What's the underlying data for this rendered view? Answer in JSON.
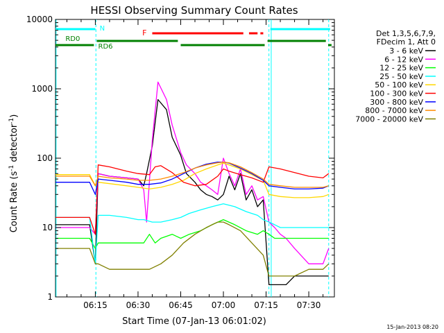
{
  "chart_data": {
    "type": "line",
    "title": "HESSI Observing Summary Count Rates",
    "xlabel": "Start Time (07-Jan-13 06:01:02)",
    "ylabel_main": "Count Rate (s",
    "ylabel_sup1": "-1",
    "ylabel_mid": " detector",
    "ylabel_sup2": "-1",
    "ylabel_end": ")",
    "y_scale": "log",
    "ylim": [
      1,
      10000
    ],
    "xlim_minutes": [
      361,
      459
    ],
    "grid": false,
    "x_ticks": [
      {
        "label": "06:15",
        "minute": 375
      },
      {
        "label": "06:30",
        "minute": 390
      },
      {
        "label": "06:45",
        "minute": 405
      },
      {
        "label": "07:00",
        "minute": 420
      },
      {
        "label": "07:15",
        "minute": 435
      },
      {
        "label": "07:30",
        "minute": 450
      }
    ],
    "y_ticks": [
      {
        "label": "1",
        "value": 1
      },
      {
        "label": "10",
        "value": 10
      },
      {
        "label": "100",
        "value": 100
      },
      {
        "label": "1000",
        "value": 1000
      },
      {
        "label": "10000",
        "value": 10000
      }
    ],
    "legend_position": "right",
    "legend_header": [
      "Det 1,3,5,6,7,9,",
      "FDecim 1, Att 0"
    ],
    "series": [
      {
        "name": "3 - 6 keV",
        "color": "#000000",
        "x": [
          361,
          373,
          375,
          376,
          380,
          386,
          390,
          392,
          393,
          395,
          397,
          400,
          402,
          405,
          407,
          410,
          412,
          414,
          416,
          418,
          420,
          422,
          424,
          426,
          428,
          430,
          432,
          434,
          436,
          438,
          440,
          442,
          445,
          450,
          455,
          457
        ],
        "y": [
          11,
          11,
          3,
          60,
          55,
          52,
          50,
          40,
          60,
          150,
          700,
          500,
          200,
          110,
          60,
          45,
          35,
          30,
          28,
          25,
          30,
          55,
          35,
          60,
          25,
          35,
          20,
          25,
          1.5,
          1.5,
          1.5,
          1.5,
          2,
          2,
          2,
          2
        ]
      },
      {
        "name": "6 - 12 keV",
        "color": "#ff00ff",
        "x": [
          361,
          373,
          375,
          376,
          380,
          386,
          390,
          392,
          393,
          395,
          397,
          400,
          402,
          405,
          407,
          410,
          412,
          414,
          416,
          418,
          420,
          422,
          424,
          426,
          428,
          430,
          432,
          434,
          436,
          438,
          440,
          442,
          445,
          450,
          455,
          457
        ],
        "y": [
          10,
          10,
          8,
          60,
          55,
          52,
          50,
          35,
          12,
          180,
          1250,
          700,
          300,
          120,
          80,
          60,
          45,
          40,
          35,
          30,
          100,
          60,
          40,
          70,
          30,
          40,
          25,
          28,
          12,
          10,
          8,
          7,
          5,
          3,
          3,
          5
        ]
      },
      {
        "name": "12 - 25 keV",
        "color": "#00ff00",
        "x": [
          361,
          373,
          375,
          376,
          380,
          386,
          390,
          392,
          394,
          396,
          398,
          402,
          405,
          408,
          412,
          416,
          420,
          424,
          428,
          432,
          434,
          436,
          438,
          440,
          445,
          450,
          455,
          457
        ],
        "y": [
          7,
          7,
          5,
          6,
          6,
          6,
          6,
          6,
          8,
          6,
          7,
          8,
          7,
          8,
          9,
          11,
          13,
          11,
          9,
          8,
          9,
          8,
          7,
          7,
          7,
          7,
          7,
          7
        ]
      },
      {
        "name": "25 - 50 keV",
        "color": "#00ffff",
        "x": [
          361,
          373,
          375,
          376,
          380,
          386,
          390,
          392,
          395,
          398,
          402,
          405,
          408,
          412,
          416,
          420,
          424,
          428,
          432,
          434,
          436,
          438,
          440,
          445,
          450,
          455,
          457
        ],
        "y": [
          14,
          14,
          3,
          15,
          15,
          14,
          13,
          13,
          12,
          12,
          13,
          14,
          16,
          18,
          20,
          22,
          20,
          17,
          15,
          13,
          12,
          11,
          10,
          10,
          10,
          10,
          10
        ]
      },
      {
        "name": "50 - 100 keV",
        "color": "#ffd700",
        "x": [
          361,
          373,
          375,
          376,
          380,
          386,
          390,
          394,
          398,
          402,
          406,
          410,
          414,
          418,
          420,
          422,
          426,
          430,
          434,
          436,
          440,
          445,
          450,
          455,
          457
        ],
        "y": [
          58,
          58,
          40,
          45,
          43,
          40,
          38,
          36,
          38,
          42,
          48,
          60,
          70,
          80,
          85,
          80,
          70,
          58,
          48,
          30,
          28,
          27,
          27,
          28,
          30
        ]
      },
      {
        "name": "100 - 300 keV",
        "color": "#ff0000",
        "x": [
          361,
          373,
          375,
          376,
          380,
          386,
          390,
          394,
          396,
          398,
          402,
          406,
          410,
          414,
          418,
          420,
          422,
          426,
          430,
          434,
          436,
          440,
          445,
          450,
          455,
          457
        ],
        "y": [
          14,
          14,
          8,
          80,
          75,
          65,
          60,
          58,
          75,
          78,
          62,
          45,
          40,
          42,
          55,
          70,
          65,
          58,
          52,
          45,
          75,
          70,
          62,
          55,
          52,
          60
        ]
      },
      {
        "name": "300 - 800 keV",
        "color": "#0000ff",
        "x": [
          361,
          373,
          375,
          376,
          380,
          386,
          390,
          394,
          398,
          402,
          406,
          410,
          414,
          418,
          420,
          422,
          426,
          430,
          434,
          436,
          440,
          445,
          450,
          455,
          457
        ],
        "y": [
          45,
          45,
          30,
          50,
          48,
          45,
          42,
          42,
          44,
          50,
          60,
          72,
          82,
          88,
          88,
          85,
          72,
          60,
          48,
          40,
          38,
          36,
          36,
          37,
          40
        ]
      },
      {
        "name": "800 - 7000 keV",
        "color": "#ff8c00",
        "x": [
          361,
          373,
          375,
          376,
          380,
          386,
          390,
          394,
          398,
          402,
          406,
          410,
          414,
          418,
          420,
          422,
          426,
          430,
          434,
          436,
          440,
          445,
          450,
          455,
          457
        ],
        "y": [
          55,
          55,
          40,
          55,
          52,
          50,
          48,
          48,
          50,
          55,
          62,
          72,
          80,
          86,
          88,
          86,
          75,
          62,
          50,
          42,
          40,
          38,
          38,
          38,
          40
        ]
      },
      {
        "name": "7000 - 20000 keV",
        "color": "#808000",
        "x": [
          361,
          373,
          375,
          376,
          380,
          386,
          390,
          394,
          398,
          402,
          406,
          410,
          414,
          418,
          420,
          422,
          426,
          430,
          434,
          436,
          440,
          445,
          450,
          455,
          457
        ],
        "y": [
          5,
          5,
          3,
          3,
          2.5,
          2.5,
          2.5,
          2.5,
          3,
          4,
          6,
          8,
          10,
          12,
          12,
          11,
          9,
          6,
          4,
          2,
          2,
          2,
          2.5,
          2.5,
          3
        ]
      }
    ],
    "annotations": [
      {
        "text": "N",
        "color": "#00ffff",
        "bar_color": "#00ffff"
      },
      {
        "text": "F",
        "color": "#ff0000",
        "bar_color": "#ff0000"
      },
      {
        "text": "RD0",
        "color": "#008000",
        "bar_color": "#008000"
      },
      {
        "text": "RD6",
        "color": "#008000",
        "bar_color": "#008000"
      }
    ],
    "footer_date": "15-Jan-2013 08:20"
  }
}
